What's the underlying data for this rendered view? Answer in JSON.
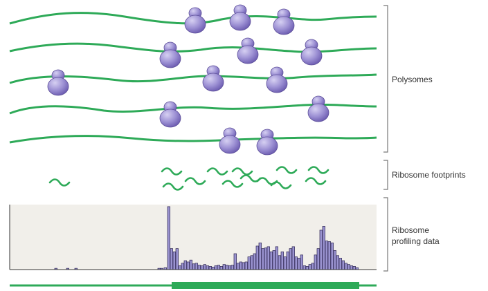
{
  "labels": {
    "polysomes": "Polysomes",
    "footprints": "Ribosome footprints",
    "profiling_line1": "Ribosome",
    "profiling_line2": "profiling data"
  },
  "colors": {
    "mrna": "#2eaa58",
    "ribosome": "#8f82c9",
    "ribosome_edge": "#5d4f99",
    "bar_fill": "#9a93d0",
    "bar_edge": "#2c2450",
    "panel_bg": "#f1efea",
    "bracket": "#777777"
  },
  "chart_data": {
    "type": "bar",
    "title": "",
    "xlabel": "",
    "ylabel": "",
    "ylim": [
      0,
      100
    ],
    "grid": false,
    "bar_positions": [
      65,
      82,
      94,
      214,
      218,
      223,
      228,
      232,
      236,
      240,
      244,
      248,
      252,
      256,
      260,
      264,
      268,
      272,
      276,
      280,
      284,
      288,
      292,
      296,
      300,
      304,
      308,
      312,
      316,
      320,
      324,
      328,
      332,
      336,
      340,
      344,
      348,
      352,
      356,
      360,
      364,
      368,
      372,
      376,
      380,
      384,
      388,
      392,
      396,
      400,
      404,
      408,
      412,
      416,
      420,
      424,
      428,
      432,
      436,
      440,
      444,
      448,
      452,
      456,
      460,
      464,
      468,
      472,
      476,
      480,
      484,
      488,
      492,
      496,
      500
    ],
    "values": [
      2,
      2,
      2,
      2,
      2,
      3,
      99,
      33,
      28,
      33,
      6,
      10,
      14,
      12,
      15,
      9,
      10,
      7,
      6,
      8,
      6,
      5,
      4,
      6,
      7,
      5,
      8,
      7,
      6,
      7,
      25,
      10,
      12,
      11,
      12,
      20,
      22,
      25,
      37,
      42,
      33,
      34,
      36,
      28,
      30,
      36,
      22,
      28,
      20,
      28,
      33,
      36,
      20,
      18,
      23,
      6,
      5,
      8,
      10,
      23,
      33,
      62,
      68,
      45,
      44,
      42,
      30,
      22,
      18,
      14,
      10,
      8,
      6,
      5,
      3
    ],
    "cds_range": [
      231,
      502
    ]
  }
}
